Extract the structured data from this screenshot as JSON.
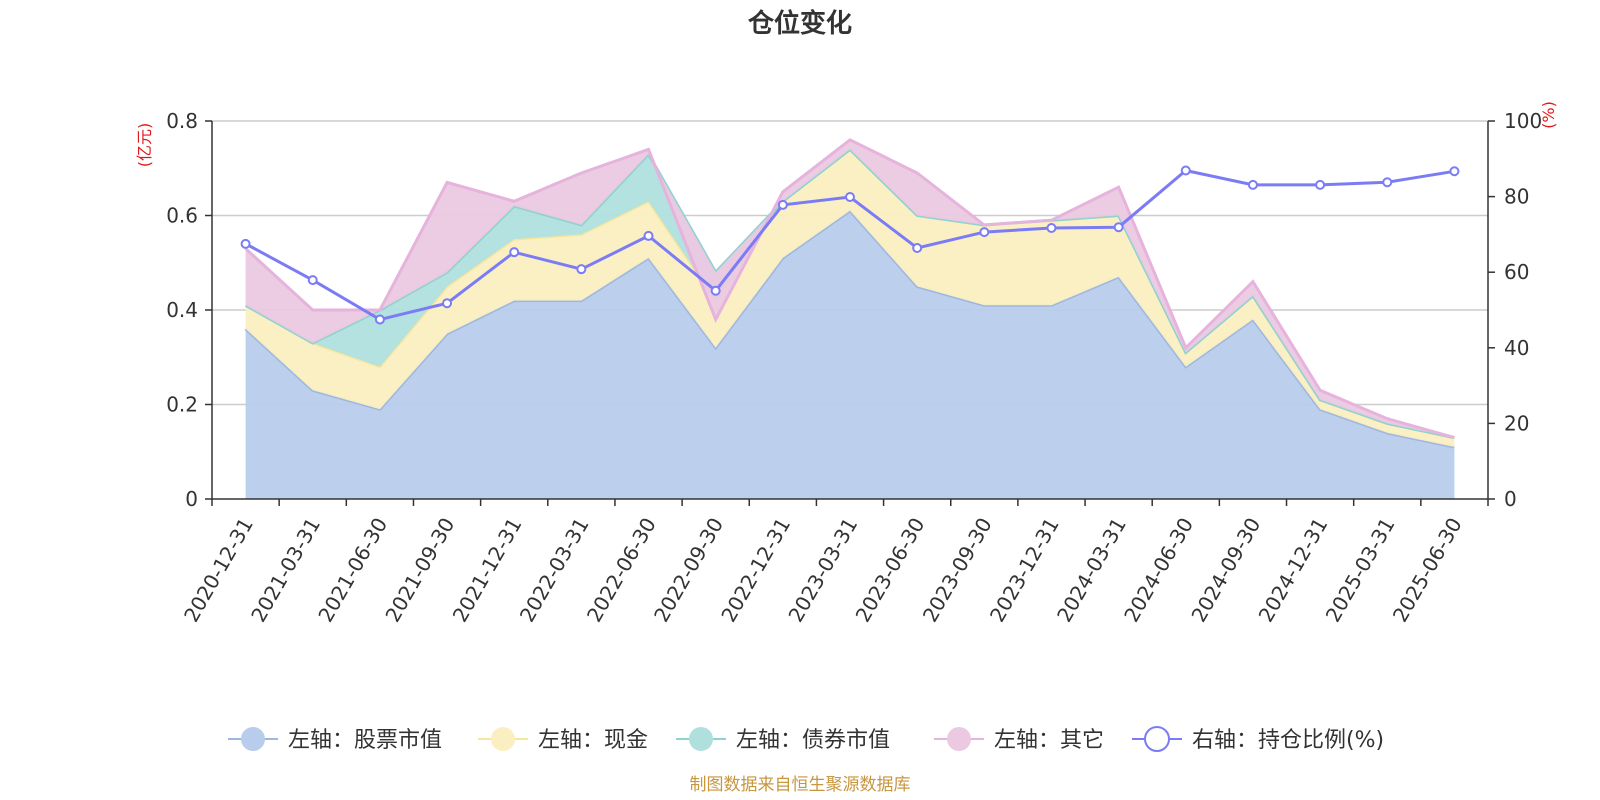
{
  "chart_data": {
    "type": "area",
    "title": "仓位变化",
    "left_axis": {
      "unit": "(亿元)",
      "ylim": [
        0,
        0.8
      ],
      "ticks": [
        "0",
        "0.2",
        "0.4",
        "0.6",
        "0.8"
      ]
    },
    "right_axis": {
      "unit": "(%)",
      "ylim": [
        0,
        100
      ],
      "ticks": [
        "0",
        "20",
        "40",
        "60",
        "80",
        "100"
      ]
    },
    "categories": [
      "2020-12-31",
      "2021-03-31",
      "2021-06-30",
      "2021-09-30",
      "2021-12-31",
      "2022-03-31",
      "2022-06-30",
      "2022-09-30",
      "2022-12-31",
      "2023-03-31",
      "2023-06-30",
      "2023-09-30",
      "2023-12-31",
      "2024-03-31",
      "2024-06-30",
      "2024-09-30",
      "2024-12-31",
      "2025-03-31",
      "2025-06-30"
    ],
    "grid": true,
    "legend_position": "bottom",
    "series": [
      {
        "name": "左轴：股票市值",
        "axis": "left",
        "stack": "total",
        "color": "#9db7e0",
        "fill": "#b8cceb",
        "values": [
          0.36,
          0.23,
          0.19,
          0.35,
          0.42,
          0.42,
          0.51,
          0.32,
          0.51,
          0.61,
          0.45,
          0.41,
          0.41,
          0.47,
          0.28,
          0.38,
          0.19,
          0.14,
          0.11
        ]
      },
      {
        "name": "左轴：现金",
        "axis": "left",
        "stack": "total",
        "color": "#f8e6a0",
        "fill": "#fbefc1",
        "values": [
          0.05,
          0.1,
          0.09,
          0.1,
          0.13,
          0.14,
          0.12,
          0.1,
          0.12,
          0.13,
          0.15,
          0.17,
          0.18,
          0.13,
          0.03,
          0.05,
          0.02,
          0.02,
          0.02
        ]
      },
      {
        "name": "左轴：债券市值",
        "axis": "left",
        "stack": "total",
        "color": "#8fd2d0",
        "fill": "#b0e0de",
        "values": [
          0,
          0,
          0.12,
          0.03,
          0.07,
          0.02,
          0.1,
          0.06,
          0,
          0,
          0,
          0,
          0,
          0,
          0,
          0,
          0,
          0,
          0
        ]
      },
      {
        "name": "左轴：其它",
        "axis": "left",
        "stack": "total",
        "color": "#e6b3dc",
        "fill": "#ebc9e2",
        "values": [
          0.12,
          0.07,
          0.0,
          0.19,
          0.01,
          0.11,
          0.01,
          -0.1,
          0.02,
          0.02,
          0.09,
          0.0,
          0.0,
          0.06,
          0.01,
          0.03,
          0.02,
          0.01,
          0.0
        ]
      },
      {
        "name": "右轴：持仓比例(%)",
        "axis": "right",
        "color": "#7b7cf5",
        "values": [
          67.5,
          57.9,
          47.5,
          51.8,
          65.3,
          60.8,
          69.6,
          55.1,
          77.8,
          79.9,
          66.4,
          70.6,
          71.7,
          71.9,
          86.9,
          83.1,
          83.1,
          83.8,
          86.7
        ]
      }
    ],
    "source": "制图数据来自恒生聚源数据库"
  }
}
